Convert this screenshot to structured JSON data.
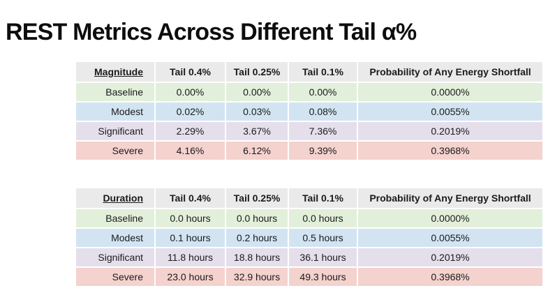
{
  "title": "REST Metrics Across Different Tail α%",
  "colors": {
    "header_bg": "#eaeaea",
    "text": "#1a1a1a",
    "row_colors": {
      "green": "#e2efda",
      "blue": "#d2e4f2",
      "purple": "#e5dfec",
      "red": "#f4d2ce"
    }
  },
  "tables": [
    {
      "name": "magnitude",
      "headers": [
        "Magnitude",
        "Tail 0.4%",
        "Tail 0.25%",
        "Tail 0.1%",
        "Probability of Any Energy Shortfall"
      ],
      "rows": [
        {
          "label": "Baseline",
          "color": "green",
          "values": [
            "0.00%",
            "0.00%",
            "0.00%",
            "0.0000%"
          ]
        },
        {
          "label": "Modest",
          "color": "blue",
          "values": [
            "0.02%",
            "0.03%",
            "0.08%",
            "0.0055%"
          ]
        },
        {
          "label": "Significant",
          "color": "purple",
          "values": [
            "2.29%",
            "3.67%",
            "7.36%",
            "0.2019%"
          ]
        },
        {
          "label": "Severe",
          "color": "red",
          "values": [
            "4.16%",
            "6.12%",
            "9.39%",
            "0.3968%"
          ]
        }
      ]
    },
    {
      "name": "duration",
      "headers": [
        "Duration",
        "Tail 0.4%",
        "Tail 0.25%",
        "Tail 0.1%",
        "Probability of Any Energy Shortfall"
      ],
      "rows": [
        {
          "label": "Baseline",
          "color": "green",
          "values": [
            "0.0 hours",
            "0.0 hours",
            "0.0 hours",
            "0.0000%"
          ]
        },
        {
          "label": "Modest",
          "color": "blue",
          "values": [
            "0.1 hours",
            "0.2 hours",
            "0.5 hours",
            "0.0055%"
          ]
        },
        {
          "label": "Significant",
          "color": "purple",
          "values": [
            "11.8 hours",
            "18.8 hours",
            "36.1 hours",
            "0.2019%"
          ]
        },
        {
          "label": "Severe",
          "color": "red",
          "values": [
            "23.0 hours",
            "32.9 hours",
            "49.3 hours",
            "0.3968%"
          ]
        }
      ]
    }
  ]
}
